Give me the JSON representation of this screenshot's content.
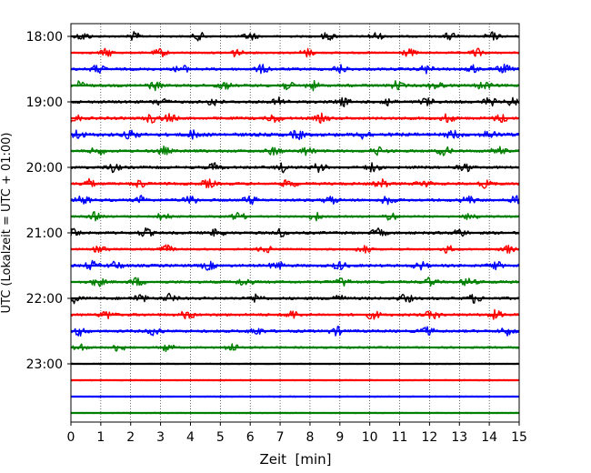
{
  "chart_data": {
    "type": "line",
    "title": "",
    "xlabel": "Zeit  [min]",
    "ylabel": "UTC (Lokalzeit = UTC + 01:00)",
    "xlim": [
      0,
      15
    ],
    "x_ticks": [
      "0",
      "1",
      "2",
      "3",
      "4",
      "5",
      "6",
      "7",
      "8",
      "9",
      "10",
      "11",
      "12",
      "13",
      "14",
      "15"
    ],
    "y_ticks": [
      "18:00",
      "19:00",
      "20:00",
      "21:00",
      "22:00",
      "23:00"
    ],
    "grid": "vertical dotted lines at each minute",
    "legend": "none",
    "trace_interval_min": 15,
    "trace_colors_cycle": [
      "#000000",
      "#ff0000",
      "#0000ff",
      "#008000"
    ],
    "traces": [
      {
        "start": "18:00",
        "color": "#000000",
        "events_min": [
          0.4,
          2.1,
          4.3,
          6.0,
          8.6,
          10.2,
          12.7,
          14.1
        ],
        "amplitude": "low"
      },
      {
        "start": "18:15",
        "color": "#ff0000",
        "events_min": [
          1.2,
          3.0,
          5.5,
          7.9,
          11.3,
          13.6
        ],
        "amplitude": "low"
      },
      {
        "start": "18:30",
        "color": "#0000ff",
        "events_min": [
          0.9,
          3.7,
          6.4,
          9.0,
          11.9,
          13.4,
          14.5
        ],
        "amplitude": "medium"
      },
      {
        "start": "18:45",
        "color": "#008000",
        "events_min": [
          0.3,
          2.8,
          5.1,
          7.2,
          8.1,
          10.9,
          12.2,
          13.8
        ],
        "amplitude": "medium"
      },
      {
        "start": "19:00",
        "color": "#000000",
        "events_min": [
          3.0,
          4.8,
          7.0,
          9.1,
          10.6,
          11.9,
          14.0,
          14.8
        ],
        "amplitude": "medium"
      },
      {
        "start": "19:15",
        "color": "#ff0000",
        "events_min": [
          0.1,
          2.7,
          3.3,
          6.8,
          8.4,
          12.6,
          14.4
        ],
        "amplitude": "medium"
      },
      {
        "start": "19:30",
        "color": "#0000ff",
        "events_min": [
          0.2,
          2.0,
          4.1,
          7.6,
          9.8,
          12.8,
          14.0
        ],
        "amplitude": "high"
      },
      {
        "start": "19:45",
        "color": "#008000",
        "events_min": [
          0.9,
          3.1,
          6.8,
          7.9,
          10.3,
          12.5,
          14.3
        ],
        "amplitude": "medium"
      },
      {
        "start": "20:00",
        "color": "#000000",
        "events_min": [
          1.4,
          4.8,
          7.1,
          8.3,
          10.1,
          13.2
        ],
        "amplitude": "medium"
      },
      {
        "start": "20:15",
        "color": "#ff0000",
        "events_min": [
          0.6,
          2.3,
          4.6,
          7.3,
          10.4,
          11.8,
          13.9
        ],
        "amplitude": "medium"
      },
      {
        "start": "20:30",
        "color": "#0000ff",
        "events_min": [
          0.4,
          2.4,
          4.0,
          6.0,
          8.7,
          10.6,
          13.3,
          14.9
        ],
        "amplitude": "medium"
      },
      {
        "start": "20:45",
        "color": "#008000",
        "events_min": [
          0.8,
          3.1,
          5.6,
          8.2,
          10.7,
          13.4
        ],
        "amplitude": "low"
      },
      {
        "start": "21:00",
        "color": "#000000",
        "events_min": [
          0.1,
          2.5,
          4.9,
          7.0,
          10.3,
          13.0
        ],
        "amplitude": "medium"
      },
      {
        "start": "21:15",
        "color": "#ff0000",
        "events_min": [
          1.0,
          3.2,
          6.5,
          9.8,
          12.6,
          14.6
        ],
        "amplitude": "low"
      },
      {
        "start": "21:30",
        "color": "#0000ff",
        "events_min": [
          0.7,
          1.5,
          4.6,
          6.9,
          9.0,
          11.7,
          14.2
        ],
        "amplitude": "medium"
      },
      {
        "start": "21:45",
        "color": "#008000",
        "events_min": [
          0.9,
          2.2,
          5.8,
          9.1,
          12.0,
          13.3
        ],
        "amplitude": "medium"
      },
      {
        "start": "22:00",
        "color": "#000000",
        "events_min": [
          0.1,
          2.3,
          3.3,
          6.2,
          8.9,
          11.2,
          13.5
        ],
        "amplitude": "medium"
      },
      {
        "start": "22:15",
        "color": "#ff0000",
        "events_min": [
          1.2,
          3.9,
          7.4,
          10.1,
          12.1,
          14.2
        ],
        "amplitude": "medium"
      },
      {
        "start": "22:30",
        "color": "#0000ff",
        "events_min": [
          0.3,
          2.8,
          6.2,
          8.9,
          11.9,
          14.6
        ],
        "amplitude": "medium"
      },
      {
        "start": "22:45",
        "color": "#008000",
        "events_min": [
          0.3,
          1.6,
          3.2,
          5.4
        ],
        "amplitude": "low"
      },
      {
        "start": "23:00",
        "color": "#000000",
        "events_min": [],
        "amplitude": "very low"
      },
      {
        "start": "23:15",
        "color": "#ff0000",
        "events_min": [],
        "amplitude": "very low"
      },
      {
        "start": "23:30",
        "color": "#0000ff",
        "events_min": [],
        "amplitude": "very low"
      },
      {
        "start": "23:45",
        "color": "#008000",
        "events_min": [],
        "amplitude": "very low"
      }
    ]
  }
}
